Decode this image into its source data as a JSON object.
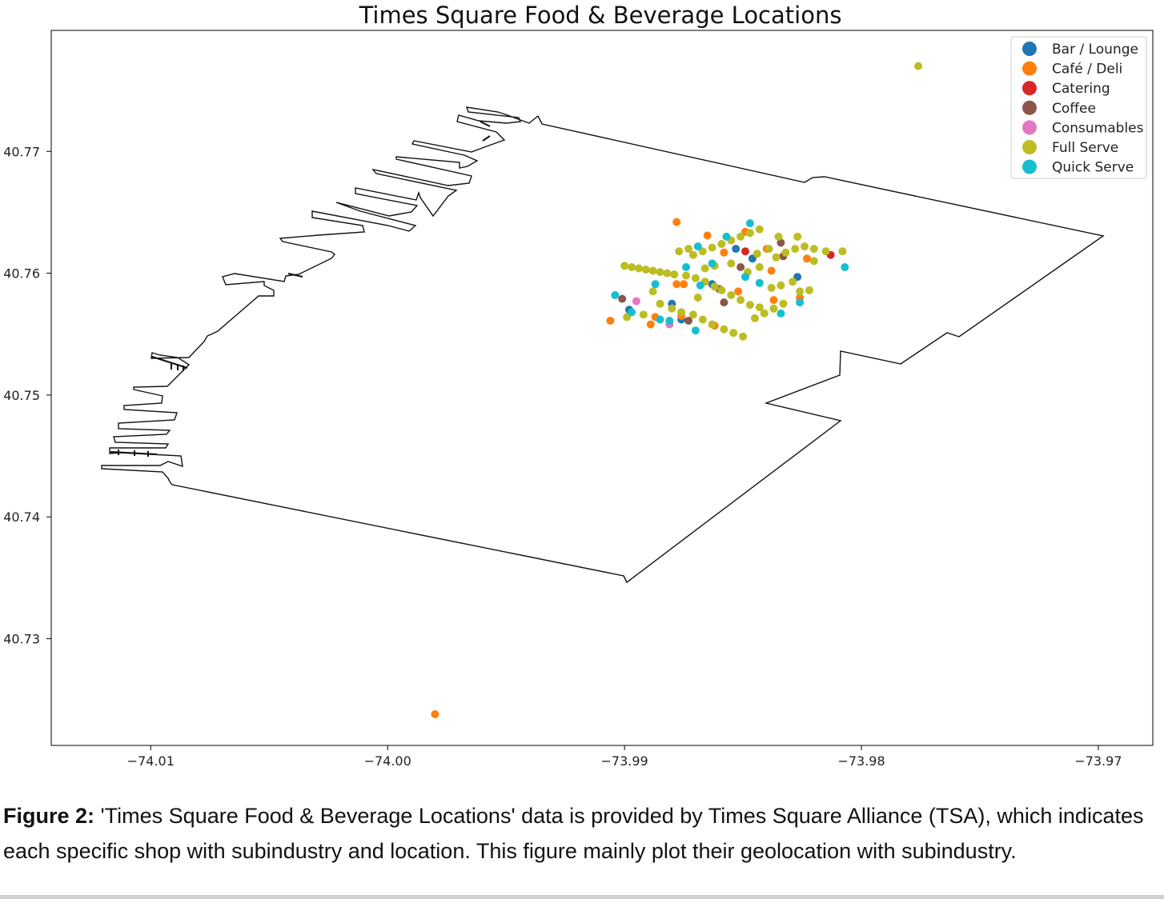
{
  "chart_data": {
    "type": "scatter",
    "title": "Times Square Food & Beverage Locations",
    "xlabel": "",
    "ylabel": "",
    "xlim": [
      -74.0142,
      -73.9677
    ],
    "ylim": [
      40.72124,
      40.77993
    ],
    "xticks": [
      {
        "value": -74.01,
        "label": "−74.01"
      },
      {
        "value": -74.0,
        "label": "−74.00"
      },
      {
        "value": -73.99,
        "label": "−73.99"
      },
      {
        "value": -73.98,
        "label": "−73.98"
      },
      {
        "value": -73.97,
        "label": "−73.97"
      }
    ],
    "yticks": [
      {
        "value": 40.73,
        "label": "40.73"
      },
      {
        "value": 40.74,
        "label": "40.74"
      },
      {
        "value": 40.75,
        "label": "40.75"
      },
      {
        "value": 40.76,
        "label": "40.76"
      },
      {
        "value": 40.77,
        "label": "40.77"
      }
    ],
    "grid": false,
    "legend_position": "top-right",
    "series": [
      {
        "name": "Bar / Lounge",
        "color": "#1f77b4",
        "points": [
          [
            -73.988,
            40.7575
          ],
          [
            -73.9853,
            40.762
          ],
          [
            -73.9846,
            40.7612
          ],
          [
            -73.9827,
            40.7597
          ],
          [
            -73.9876,
            40.7562
          ],
          [
            -73.9863,
            40.7591
          ],
          [
            -73.9898,
            40.757
          ]
        ]
      },
      {
        "name": "Café / Deli",
        "color": "#ff7f0e",
        "points": [
          [
            -73.9906,
            40.7561
          ],
          [
            -73.998,
            40.7238
          ],
          [
            -73.9878,
            40.7591
          ],
          [
            -73.9858,
            40.7617
          ],
          [
            -73.9876,
            40.7565
          ],
          [
            -73.9852,
            40.7585
          ],
          [
            -73.984,
            40.762
          ],
          [
            -73.9865,
            40.7631
          ],
          [
            -73.9878,
            40.7642
          ],
          [
            -73.9887,
            40.7564
          ],
          [
            -73.9889,
            40.7558
          ],
          [
            -73.9837,
            40.7578
          ],
          [
            -73.9826,
            40.758
          ],
          [
            -73.9838,
            40.7602
          ],
          [
            -73.9862,
            40.7557
          ],
          [
            -73.9875,
            40.7591
          ],
          [
            -73.9849,
            40.7634
          ],
          [
            -73.9823,
            40.7612
          ]
        ]
      },
      {
        "name": "Catering",
        "color": "#d62728",
        "points": [
          [
            -73.9849,
            40.7618
          ],
          [
            -73.9813,
            40.7615
          ]
        ]
      },
      {
        "name": "Coffee",
        "color": "#8c564b",
        "points": [
          [
            -73.9851,
            40.7605
          ],
          [
            -73.9858,
            40.7576
          ],
          [
            -73.9833,
            40.7614
          ],
          [
            -73.986,
            40.7587
          ],
          [
            -73.9834,
            40.7625
          ],
          [
            -73.9901,
            40.7579
          ],
          [
            -73.9873,
            40.7561
          ]
        ]
      },
      {
        "name": "Consumables",
        "color": "#e377c2",
        "points": [
          [
            -73.9881,
            40.7558
          ],
          [
            -73.9895,
            40.7577
          ]
        ]
      },
      {
        "name": "Full Serve",
        "color": "#bcbd22",
        "points": [
          [
            -73.9776,
            40.777
          ],
          [
            -73.99,
            40.7606
          ],
          [
            -73.9897,
            40.7605
          ],
          [
            -73.9894,
            40.7604
          ],
          [
            -73.9891,
            40.7603
          ],
          [
            -73.9888,
            40.7602
          ],
          [
            -73.9885,
            40.7601
          ],
          [
            -73.9882,
            40.76
          ],
          [
            -73.9879,
            40.7599
          ],
          [
            -73.9871,
            40.7615
          ],
          [
            -73.9867,
            40.7618
          ],
          [
            -73.9863,
            40.7621
          ],
          [
            -73.9859,
            40.7624
          ],
          [
            -73.9855,
            40.7627
          ],
          [
            -73.9851,
            40.763
          ],
          [
            -73.9847,
            40.7633
          ],
          [
            -73.9843,
            40.7636
          ],
          [
            -73.9862,
            40.7606
          ],
          [
            -73.9855,
            40.7608
          ],
          [
            -73.9848,
            40.7601
          ],
          [
            -73.9843,
            40.7605
          ],
          [
            -73.9836,
            40.7613
          ],
          [
            -73.9832,
            40.7617
          ],
          [
            -73.9828,
            40.762
          ],
          [
            -73.9824,
            40.7622
          ],
          [
            -73.982,
            40.762
          ],
          [
            -73.9815,
            40.7618
          ],
          [
            -73.9808,
            40.7618
          ],
          [
            -73.9866,
            40.7593
          ],
          [
            -73.9862,
            40.7589
          ],
          [
            -73.9859,
            40.7586
          ],
          [
            -73.9855,
            40.7582
          ],
          [
            -73.9851,
            40.7578
          ],
          [
            -73.9847,
            40.7574
          ],
          [
            -73.9843,
            40.7572
          ],
          [
            -73.9885,
            40.7575
          ],
          [
            -73.988,
            40.7571
          ],
          [
            -73.9876,
            40.7568
          ],
          [
            -73.9871,
            40.7566
          ],
          [
            -73.9867,
            40.7562
          ],
          [
            -73.9863,
            40.7558
          ],
          [
            -73.9858,
            40.7554
          ],
          [
            -73.9854,
            40.7551
          ],
          [
            -73.985,
            40.7548
          ],
          [
            -73.9845,
            40.7563
          ],
          [
            -73.9841,
            40.7567
          ],
          [
            -73.9837,
            40.7571
          ],
          [
            -73.9833,
            40.7575
          ],
          [
            -73.9838,
            40.7588
          ],
          [
            -73.9834,
            40.759
          ],
          [
            -73.9829,
            40.7593
          ],
          [
            -73.9826,
            40.7585
          ],
          [
            -73.9822,
            40.7586
          ],
          [
            -73.9874,
            40.7598
          ],
          [
            -73.987,
            40.7596
          ],
          [
            -73.9866,
            40.7604
          ],
          [
            -73.9844,
            40.7616
          ],
          [
            -73.9839,
            40.762
          ],
          [
            -73.9835,
            40.763
          ],
          [
            -73.9827,
            40.763
          ],
          [
            -73.982,
            40.761
          ],
          [
            -73.9869,
            40.758
          ],
          [
            -73.9892,
            40.7566
          ],
          [
            -73.9899,
            40.7564
          ],
          [
            -73.9888,
            40.7585
          ],
          [
            -73.9877,
            40.7618
          ],
          [
            -73.9873,
            40.762
          ]
        ]
      },
      {
        "name": "Quick Serve",
        "color": "#17becf",
        "points": [
          [
            -73.9847,
            40.7641
          ],
          [
            -73.9874,
            40.7605
          ],
          [
            -73.9857,
            40.763
          ],
          [
            -73.9881,
            40.7561
          ],
          [
            -73.9863,
            40.7608
          ],
          [
            -73.9849,
            40.7597
          ],
          [
            -73.9897,
            40.7568
          ],
          [
            -73.9843,
            40.7592
          ],
          [
            -73.9834,
            40.7567
          ],
          [
            -73.9885,
            40.7562
          ],
          [
            -73.987,
            40.7553
          ],
          [
            -73.9807,
            40.7605
          ],
          [
            -73.9887,
            40.7591
          ],
          [
            -73.9904,
            40.7582
          ],
          [
            -73.9869,
            40.7622
          ],
          [
            -73.9826,
            40.7576
          ],
          [
            -73.9868,
            40.759
          ]
        ]
      }
    ]
  },
  "caption": {
    "label": "Figure 2:",
    "text": " 'Times Square Food & Beverage Locations' data is provided by Times Square Alliance (TSA), which indicates each specific shop with subindustry and location. This figure mainly plot their geolocation with subindustry."
  }
}
